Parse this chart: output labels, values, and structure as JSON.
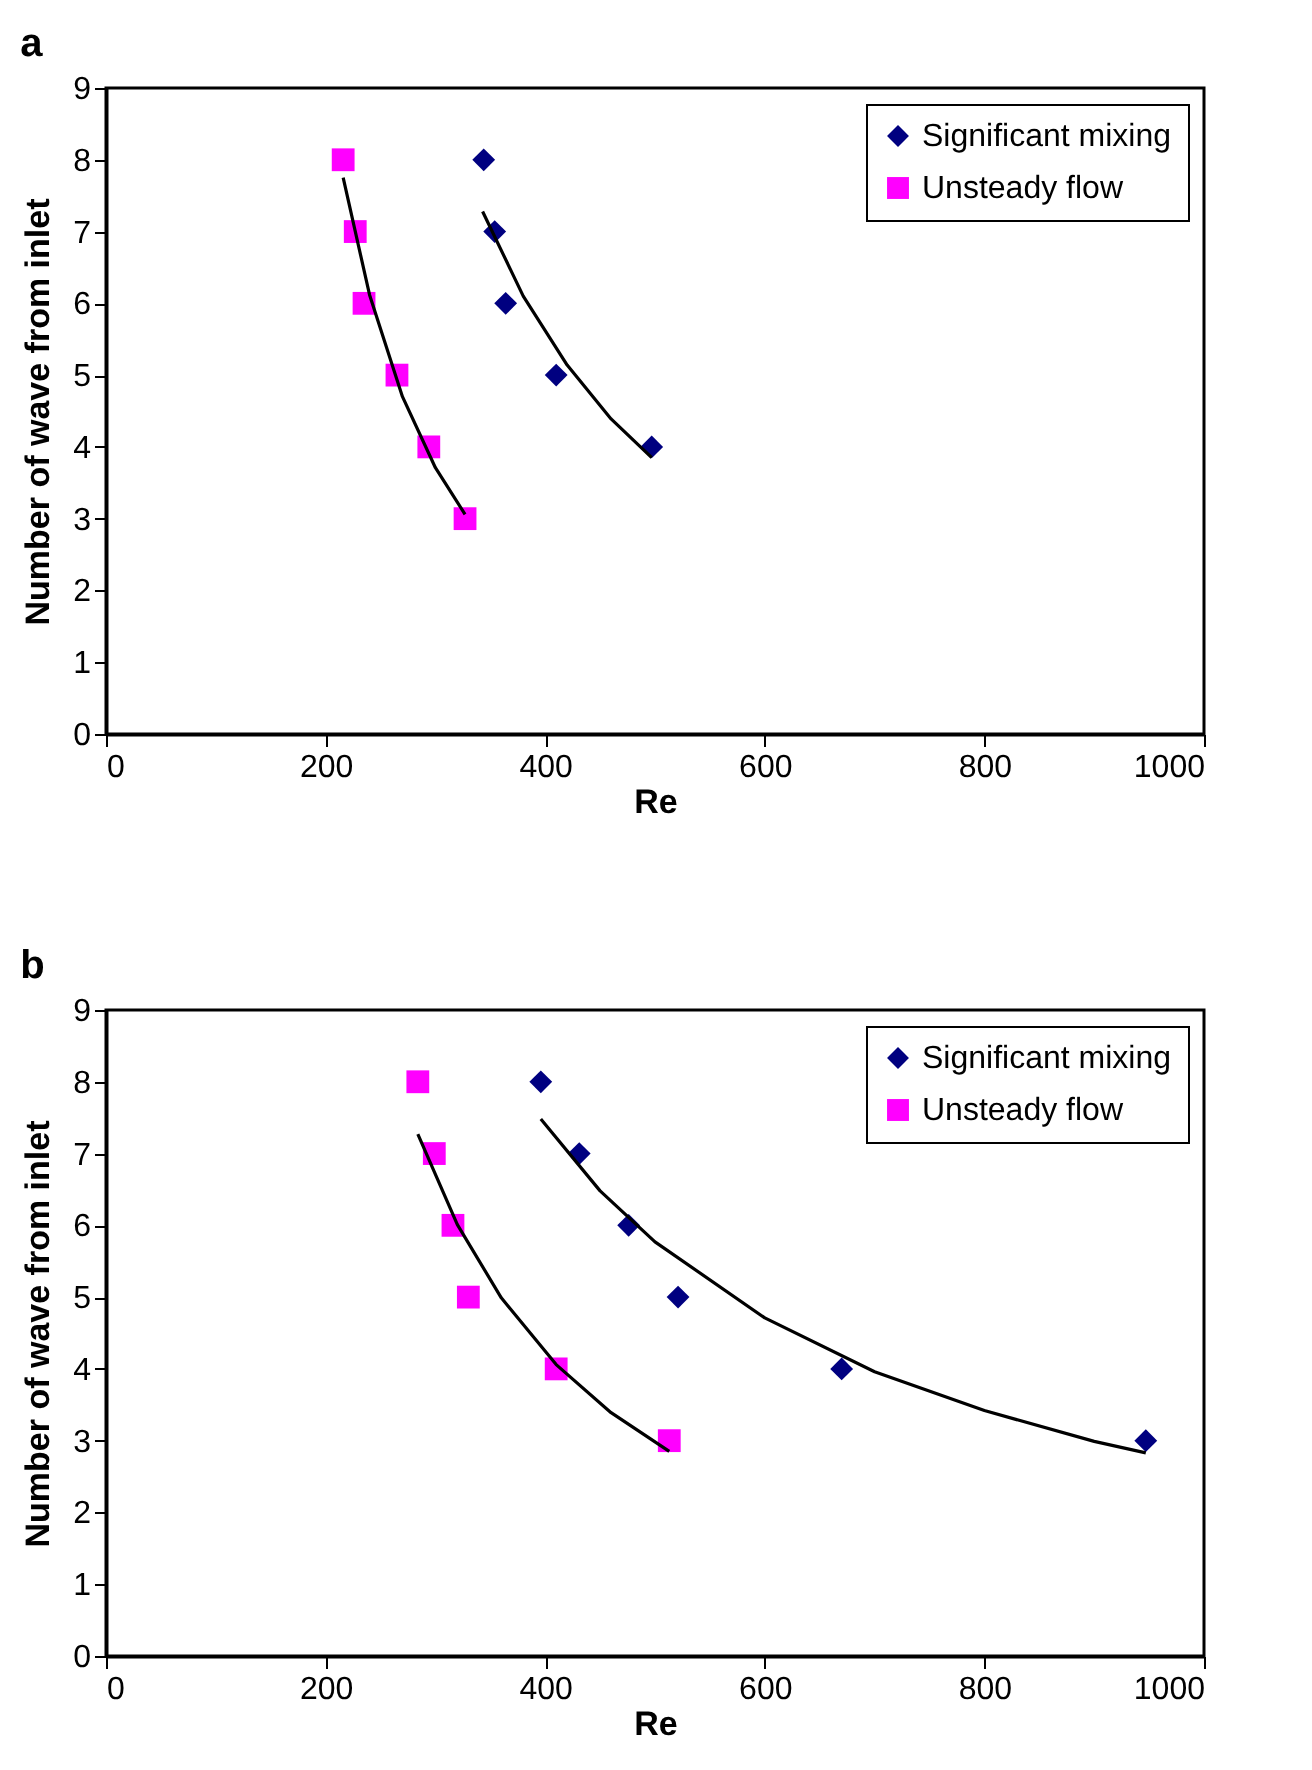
{
  "chart_data": [
    {
      "type": "scatter",
      "title": "a",
      "xlabel": "Re",
      "ylabel": "Number of wave from inlet",
      "xlim": [
        0,
        1000
      ],
      "xticks": [
        0,
        200,
        400,
        600,
        800,
        1000
      ],
      "ylim": [
        0,
        9
      ],
      "yticks": [
        0,
        1,
        2,
        3,
        4,
        5,
        6,
        7,
        8,
        9
      ],
      "grid": false,
      "legend": "top right",
      "series": [
        {
          "name": "Significant mixing",
          "type": "scatter",
          "marker": "diamond",
          "color": "#000080",
          "x": [
            344,
            354,
            364,
            410,
            497
          ],
          "values": [
            8,
            7,
            6,
            5,
            4
          ]
        },
        {
          "name": "Unsteady flow",
          "type": "scatter",
          "marker": "square",
          "color": "#ff00ff",
          "x": [
            216,
            227,
            235,
            265,
            294,
            327
          ],
          "values": [
            8,
            7,
            6,
            5,
            4,
            3
          ]
        },
        {
          "type": "line",
          "color": "#000000",
          "x": [
            343,
            380,
            420,
            460,
            497
          ],
          "values": [
            7.28,
            6.1,
            5.14,
            4.39,
            3.85
          ]
        },
        {
          "type": "line",
          "color": "#000000",
          "x": [
            216,
            240,
            270,
            300,
            327
          ],
          "values": [
            7.75,
            6.12,
            4.7,
            3.71,
            3.06
          ]
        }
      ]
    },
    {
      "type": "scatter",
      "title": "b",
      "xlabel": "Re",
      "ylabel": "Number of wave from inlet",
      "xlim": [
        0,
        1000
      ],
      "xticks": [
        0,
        200,
        400,
        600,
        800,
        1000
      ],
      "ylim": [
        0,
        9
      ],
      "yticks": [
        0,
        1,
        2,
        3,
        4,
        5,
        6,
        7,
        8,
        9
      ],
      "grid": false,
      "legend": "top right",
      "series": [
        {
          "name": "Significant mixing",
          "type": "scatter",
          "marker": "diamond",
          "color": "#000080",
          "x": [
            396,
            431,
            476,
            521,
            670,
            947
          ],
          "values": [
            8,
            7,
            6,
            5,
            4,
            3
          ]
        },
        {
          "name": "Unsteady flow",
          "type": "scatter",
          "marker": "square",
          "color": "#ff00ff",
          "x": [
            284,
            299,
            316,
            330,
            410,
            513
          ],
          "values": [
            8,
            7,
            6,
            5,
            4,
            3
          ]
        },
        {
          "type": "line",
          "color": "#000000",
          "x": [
            396,
            450,
            500,
            600,
            700,
            800,
            900,
            947
          ],
          "values": [
            7.48,
            6.48,
            5.77,
            4.71,
            3.96,
            3.42,
            2.99,
            2.83
          ]
        },
        {
          "type": "line",
          "color": "#000000",
          "x": [
            284,
            320,
            360,
            410,
            460,
            513
          ],
          "values": [
            7.27,
            6.01,
            4.99,
            4.06,
            3.39,
            2.85
          ]
        }
      ]
    }
  ]
}
